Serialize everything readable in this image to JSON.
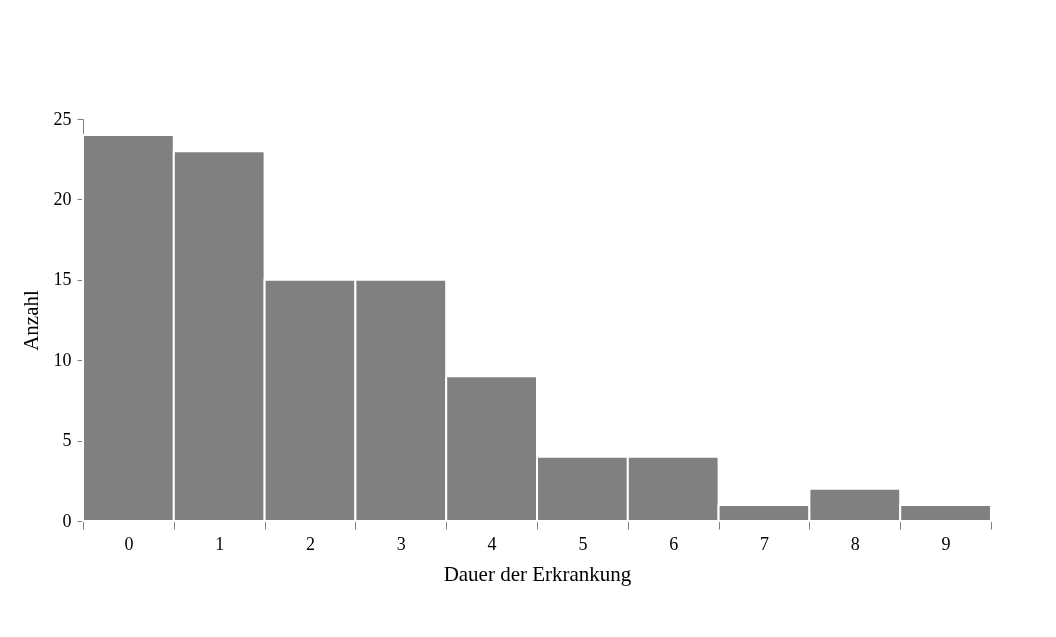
{
  "chart_data": {
    "type": "bar",
    "categories": [
      "0",
      "1",
      "2",
      "3",
      "4",
      "5",
      "6",
      "7",
      "8",
      "9"
    ],
    "values": [
      24,
      23,
      15,
      15,
      9,
      4,
      4,
      1,
      2,
      1
    ],
    "color": "#808080",
    "xlabel": "Dauer der Erkrankung",
    "ylabel": "Anzahl",
    "ylim": [
      0,
      25
    ],
    "yticks": [
      0,
      5,
      10,
      15,
      20,
      25
    ],
    "grid": false
  }
}
